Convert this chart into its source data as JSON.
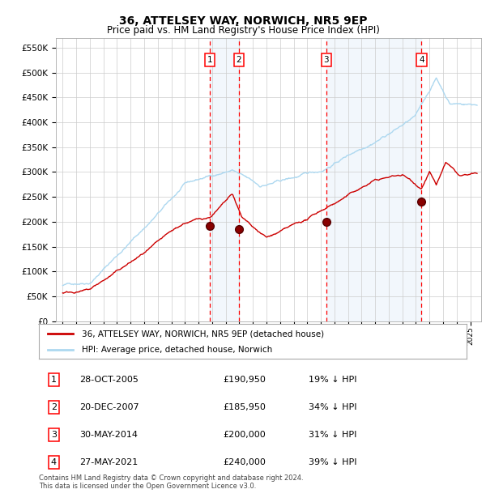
{
  "title": "36, ATTELSEY WAY, NORWICH, NR5 9EP",
  "subtitle": "Price paid vs. HM Land Registry's House Price Index (HPI)",
  "ylim": [
    0,
    570000
  ],
  "xlim_start": 1994.5,
  "xlim_end": 2025.8,
  "hpi_color": "#add8f0",
  "price_color": "#cc0000",
  "legend_label_price": "36, ATTELSEY WAY, NORWICH, NR5 9EP (detached house)",
  "legend_label_hpi": "HPI: Average price, detached house, Norwich",
  "transactions": [
    {
      "num": 1,
      "date": "28-OCT-2005",
      "price": 190950,
      "pct": "19%",
      "year": 2005.82
    },
    {
      "num": 2,
      "date": "20-DEC-2007",
      "price": 185950,
      "pct": "34%",
      "year": 2007.97
    },
    {
      "num": 3,
      "date": "30-MAY-2014",
      "price": 200000,
      "pct": "31%",
      "year": 2014.41
    },
    {
      "num": 4,
      "date": "27-MAY-2021",
      "price": 240000,
      "pct": "39%",
      "year": 2021.41
    }
  ],
  "footer": "Contains HM Land Registry data © Crown copyright and database right 2024.\nThis data is licensed under the Open Government Licence v3.0."
}
